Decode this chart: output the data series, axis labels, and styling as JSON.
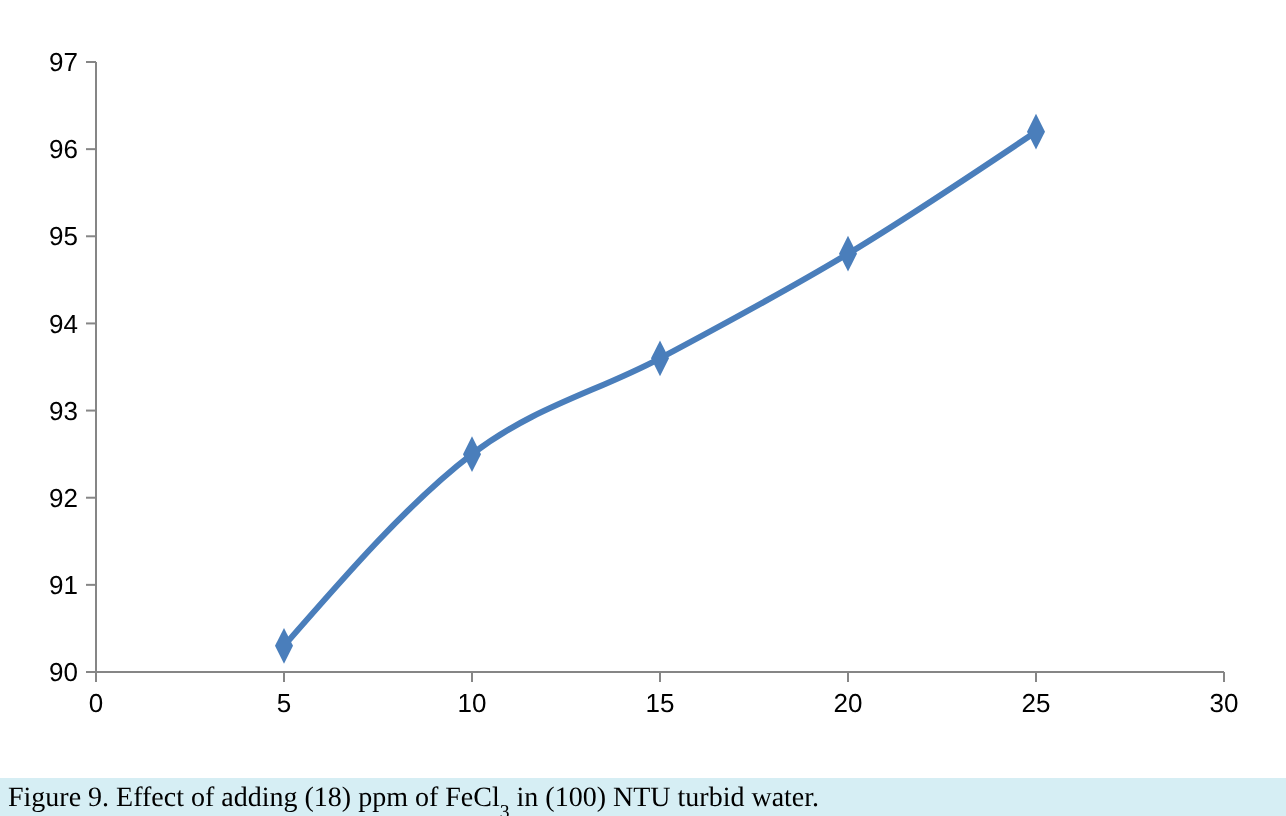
{
  "chart_data": {
    "type": "line",
    "x": [
      5,
      10,
      15,
      20,
      25
    ],
    "series": [
      {
        "color": "#4a7ebb",
        "values": [
          90.3,
          92.5,
          93.6,
          94.8,
          96.2
        ]
      }
    ],
    "xlim": [
      0,
      30
    ],
    "xticks": [
      0,
      5,
      10,
      15,
      20,
      25,
      30
    ],
    "ylim": [
      90,
      97
    ],
    "yticks": [
      90,
      91,
      92,
      93,
      94,
      95,
      96,
      97
    ],
    "marker": "diamond",
    "line_style": "solid",
    "annotations": [
      "Figure 9. Effect of adding (18) ppm of FeCl$_{3}$ in (100) NTU turbid water."
    ]
  }
}
